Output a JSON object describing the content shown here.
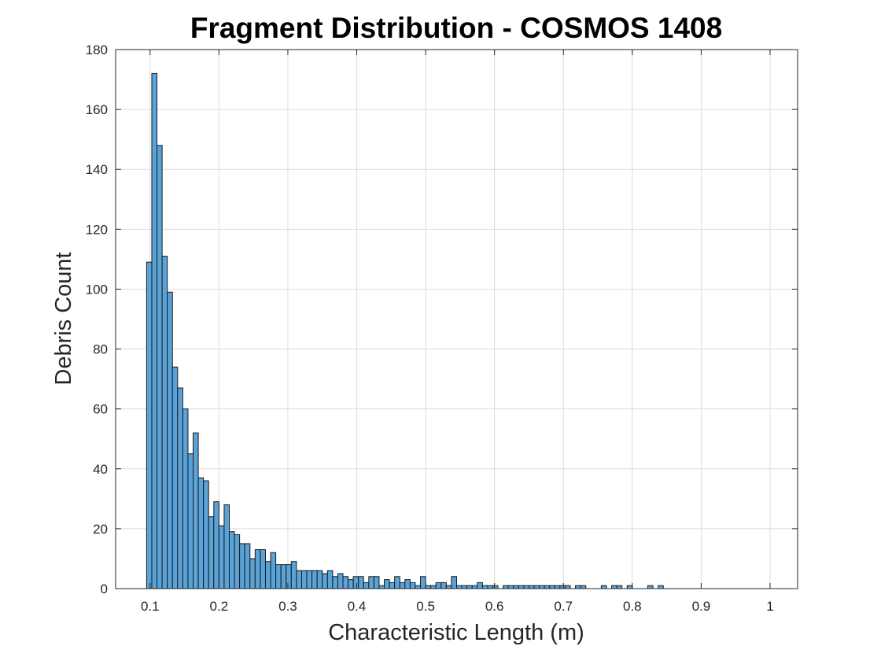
{
  "chart_data": {
    "type": "bar",
    "title": "Fragment Distribution - COSMOS 1408",
    "xlabel": "Characteristic Length (m)",
    "ylabel": "Debris Count",
    "xlim": [
      0.05,
      1.04
    ],
    "ylim": [
      0,
      180
    ],
    "xticks": [
      0.1,
      0.2,
      0.3,
      0.4,
      0.5,
      0.6,
      0.7,
      0.8,
      0.9,
      1
    ],
    "xtick_labels": [
      "0.1",
      "0.2",
      "0.3",
      "0.4",
      "0.5",
      "0.6",
      "0.7",
      "0.8",
      "0.9",
      "1"
    ],
    "yticks": [
      0,
      20,
      40,
      60,
      80,
      100,
      120,
      140,
      160,
      180
    ],
    "ytick_labels": [
      "0",
      "20",
      "40",
      "60",
      "80",
      "100",
      "120",
      "140",
      "160",
      "180"
    ],
    "grid": true,
    "bar_color": "#5aa3d9",
    "bin_start": 0.095,
    "bin_width": 0.0075,
    "values": [
      109,
      172,
      148,
      111,
      99,
      74,
      67,
      60,
      45,
      52,
      37,
      36,
      24,
      29,
      21,
      28,
      19,
      18,
      15,
      15,
      10,
      13,
      13,
      9,
      12,
      8,
      8,
      8,
      9,
      6,
      6,
      6,
      6,
      6,
      5,
      6,
      4,
      5,
      4,
      3,
      4,
      4,
      2,
      4,
      4,
      1,
      3,
      2,
      4,
      2,
      3,
      2,
      1,
      4,
      1,
      1,
      2,
      2,
      1,
      4,
      1,
      1,
      1,
      1,
      2,
      1,
      1,
      1,
      0,
      1,
      1,
      1,
      1,
      1,
      1,
      1,
      1,
      1,
      1,
      1,
      1,
      1,
      0,
      1,
      1,
      0,
      0,
      0,
      1,
      0,
      1,
      1,
      0,
      1,
      0,
      0,
      0,
      1,
      0,
      1
    ]
  }
}
